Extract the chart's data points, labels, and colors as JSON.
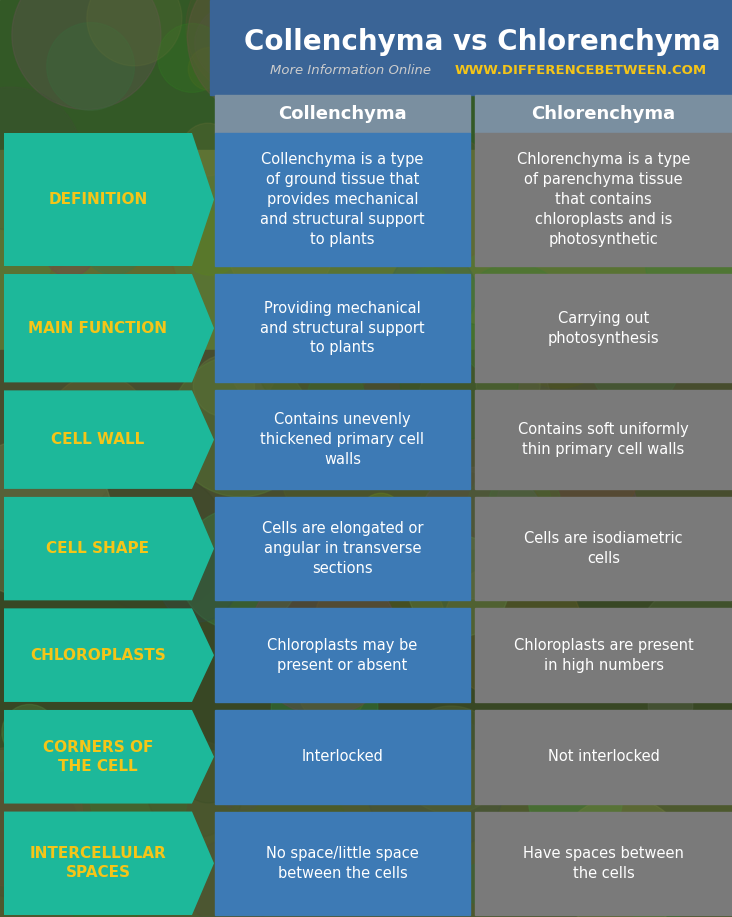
{
  "title": "Collenchyma vs Chlorenchyma",
  "subtitle_plain": "More Information Online",
  "subtitle_url": "WWW.DIFFERENCEBETWEEN.COM",
  "col1_header": "Collenchyma",
  "col2_header": "Chlorenchyma",
  "rows": [
    {
      "label": "DEFINITION",
      "col1": "Collenchyma is a type\nof ground tissue that\nprovides mechanical\nand structural support\nto plants",
      "col2": "Chlorenchyma is a type\nof parenchyma tissue\nthat contains\nchloroplasts and is\nphotosynthetic"
    },
    {
      "label": "MAIN FUNCTION",
      "col1": "Providing mechanical\nand structural support\nto plants",
      "col2": "Carrying out\nphotosynthesis"
    },
    {
      "label": "CELL WALL",
      "col1": "Contains unevenly\nthickened primary cell\nwalls",
      "col2": "Contains soft uniformly\nthin primary cell walls"
    },
    {
      "label": "CELL SHAPE",
      "col1": "Cells are elongated or\nangular in transverse\nsections",
      "col2": "Cells are isodiametric\ncells"
    },
    {
      "label": "CHLOROPLASTS",
      "col1": "Chloroplasts may be\npresent or absent",
      "col2": "Chloroplasts are present\nin high numbers"
    },
    {
      "label": "CORNERS OF\nTHE CELL",
      "col1": "Interlocked",
      "col2": "Not interlocked"
    },
    {
      "label": "INTERCELLULAR\nSPACES",
      "col1": "No space/little space\nbetween the cells",
      "col2": "Have spaces between\nthe cells"
    }
  ],
  "title_bg_color": "#3a6496",
  "title_text_color": "#ffffff",
  "subtitle_plain_color": "#cccccc",
  "subtitle_url_color": "#f5c518",
  "header_bg_color": "#7a8fa0",
  "header_text_color": "#ffffff",
  "label_bg_color": "#1db89a",
  "label_text_color": "#f5c518",
  "col1_bg_color": "#3d7ab5",
  "col2_bg_color": "#7a7a7a",
  "cell_text_color": "#ffffff",
  "bg_top_color": "#2a5a3a",
  "bg_bottom_color": "#3a4a2a",
  "gap_bg_color": "#5a7040",
  "fig_width": 7.32,
  "fig_height": 9.17
}
